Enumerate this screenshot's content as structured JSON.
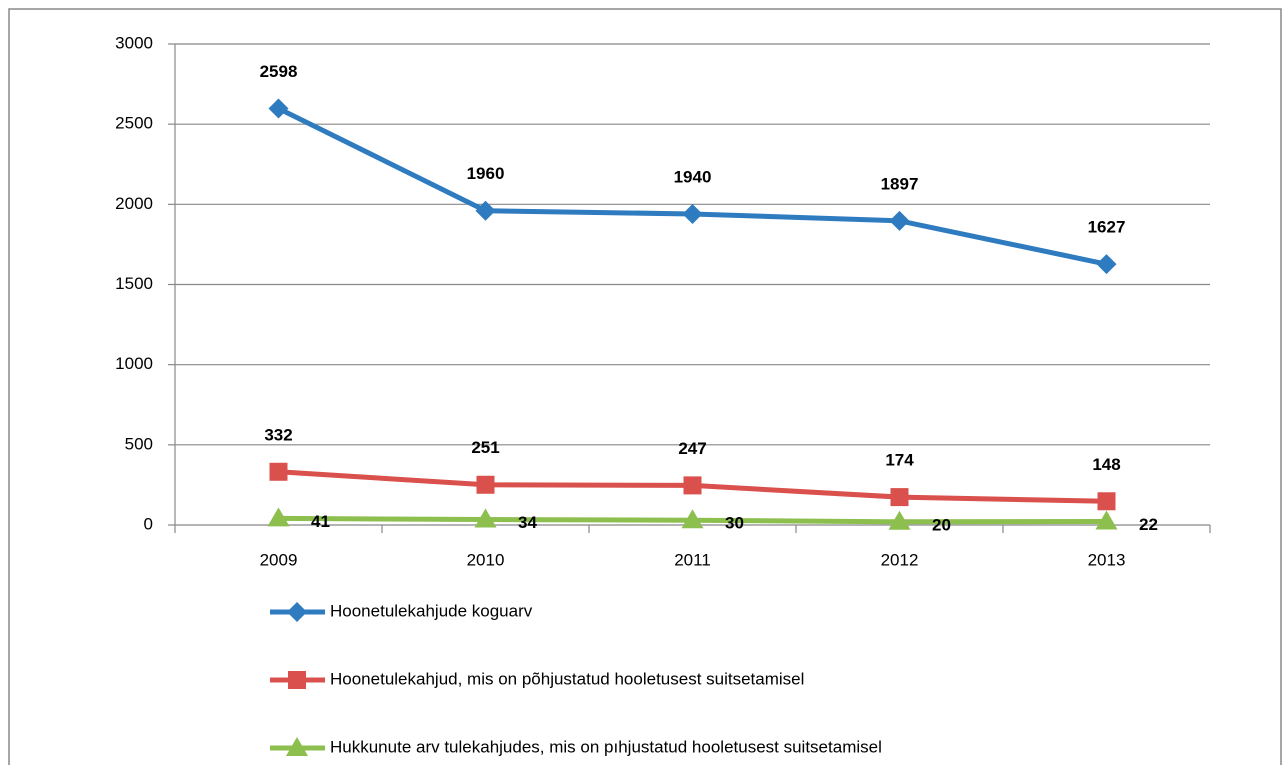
{
  "chart_data": {
    "type": "line",
    "categories": [
      "2009",
      "2010",
      "2011",
      "2012",
      "2013"
    ],
    "series": [
      {
        "name": "Hoonetulekahjude koguarv",
        "color": "#2e7bbf",
        "marker": "diamond",
        "label_position": "above",
        "values": [
          2598,
          1960,
          1940,
          1897,
          1627
        ]
      },
      {
        "name": "Hoonetulekahjud, mis on põhjustatud hooletusest suitsetamisel",
        "color": "#d9504c",
        "marker": "square",
        "label_position": "above",
        "values": [
          332,
          251,
          247,
          174,
          148
        ]
      },
      {
        "name": "Hukkunute arv tulekahjudes, mis on pıhjustatud hooletusest suitsetamisel",
        "color": "#8cbf4e",
        "marker": "triangle",
        "label_position": "right",
        "values": [
          41,
          34,
          30,
          20,
          22
        ]
      }
    ],
    "ylim": [
      0,
      3000
    ],
    "yticks": [
      0,
      500,
      1000,
      1500,
      2000,
      2500,
      3000
    ],
    "grid": true,
    "legend": "bottom"
  }
}
